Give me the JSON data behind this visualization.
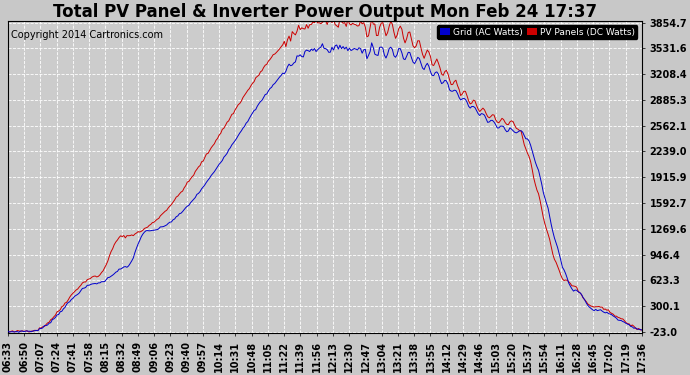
{
  "title": "Total PV Panel & Inverter Power Output Mon Feb 24 17:37",
  "copyright": "Copyright 2014 Cartronics.com",
  "legend_blue_label": "Grid (AC Watts)",
  "legend_red_label": "PV Panels (DC Watts)",
  "yticks": [
    -23.0,
    300.1,
    623.3,
    946.4,
    1269.6,
    1592.7,
    1915.9,
    2239.0,
    2562.1,
    2885.3,
    3208.4,
    3531.6,
    3854.7
  ],
  "ymin": -23.0,
  "ymax": 3854.7,
  "background_color": "#c8c8c8",
  "plot_background": "#cccccc",
  "grid_color": "#ffffff",
  "blue_color": "#0000cc",
  "red_color": "#cc0000",
  "title_fontsize": 12,
  "tick_fontsize": 7,
  "copyright_fontsize": 7,
  "xtick_labels": [
    "06:33",
    "06:50",
    "07:07",
    "07:24",
    "07:41",
    "07:58",
    "08:15",
    "08:32",
    "08:49",
    "09:06",
    "09:23",
    "09:40",
    "09:57",
    "10:14",
    "10:31",
    "10:48",
    "11:05",
    "11:22",
    "11:39",
    "11:56",
    "12:13",
    "12:30",
    "12:47",
    "13:04",
    "13:21",
    "13:38",
    "13:55",
    "14:12",
    "14:29",
    "14:46",
    "15:03",
    "15:20",
    "15:37",
    "15:54",
    "16:11",
    "16:28",
    "16:45",
    "17:02",
    "17:19",
    "17:36"
  ]
}
